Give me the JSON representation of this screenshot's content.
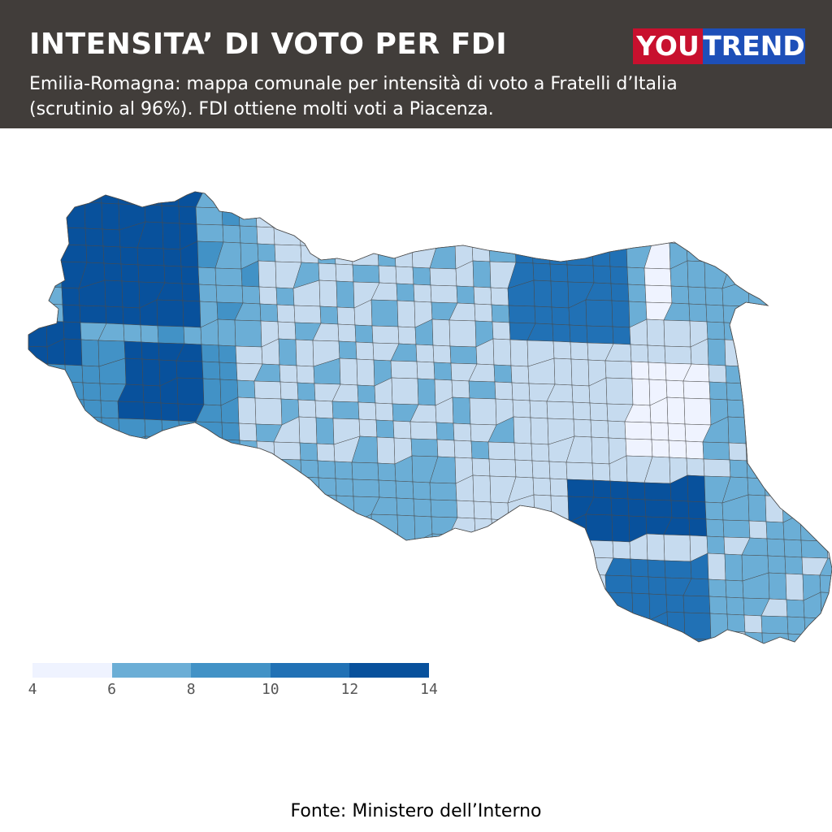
{
  "header": {
    "title": "INTENSITA’ DI VOTO PER FDI",
    "subtitle": "Emilia-Romagna: mappa comunale per intensità di voto a Fratelli d’Italia (scrutinio al 96%). FDI ottiene molti voti a Piacenza.",
    "logo_you": "YOU",
    "logo_trend": "TREND"
  },
  "legend": {
    "ticks": [
      "4",
      "6",
      "8",
      "10",
      "12",
      "14"
    ],
    "colors": [
      "#eff3ff",
      "#c6dbef",
      "#6baed6",
      "#4292c6",
      "#2171b5",
      "#08519c"
    ]
  },
  "map": {
    "colors": {
      "c1": "#eff3ff",
      "c2": "#c6dbef",
      "c3": "#6baed6",
      "c4": "#4292c6",
      "c5": "#2171b5",
      "c6": "#08519c",
      "border": "#4a4a4a"
    }
  },
  "source": "Fonte: Ministero dell’Interno"
}
